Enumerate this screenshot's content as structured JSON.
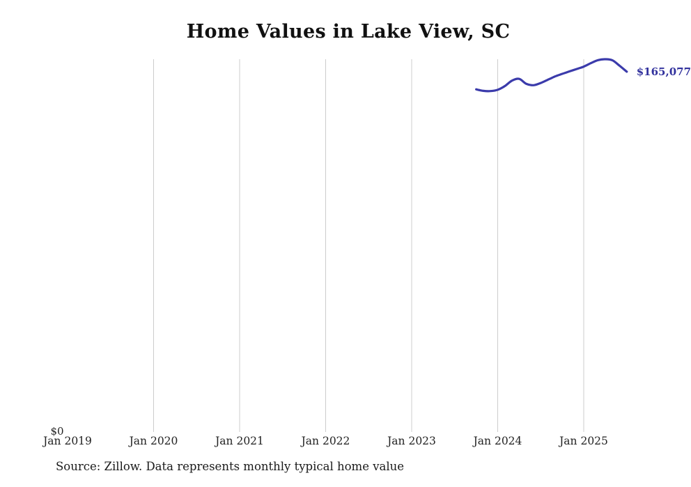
{
  "chart_data": {
    "type": "line",
    "title": "Home Values in Lake View, SC",
    "source": "Source: Zillow. Data represents monthly typical home value",
    "y_zero_label": "$0",
    "end_label": "$165,077",
    "line_color": "#3b3bab",
    "end_label_color": "#31319d",
    "gridline_color": "#cccccc",
    "xlabel": "",
    "ylabel": "",
    "ylim": [
      0,
      175000
    ],
    "x_ticks": [
      "Jan 2019",
      "Jan 2020",
      "Jan 2021",
      "Jan 2022",
      "Jan 2023",
      "Jan 2024",
      "Jan 2025"
    ],
    "legend": "none",
    "series": [
      {
        "name": "Monthly typical home value",
        "points": [
          {
            "month": "2023-10",
            "value": 157000
          },
          {
            "month": "2023-11",
            "value": 156300
          },
          {
            "month": "2023-12",
            "value": 156200
          },
          {
            "month": "2024-01",
            "value": 156800
          },
          {
            "month": "2024-02",
            "value": 158500
          },
          {
            "month": "2024-03",
            "value": 161000
          },
          {
            "month": "2024-04",
            "value": 161800
          },
          {
            "month": "2024-05",
            "value": 159500
          },
          {
            "month": "2024-06",
            "value": 158900
          },
          {
            "month": "2024-07",
            "value": 159900
          },
          {
            "month": "2024-08",
            "value": 161400
          },
          {
            "month": "2024-09",
            "value": 162900
          },
          {
            "month": "2024-10",
            "value": 164100
          },
          {
            "month": "2024-11",
            "value": 165200
          },
          {
            "month": "2024-12",
            "value": 166300
          },
          {
            "month": "2025-01",
            "value": 167400
          },
          {
            "month": "2025-02",
            "value": 169000
          },
          {
            "month": "2025-03",
            "value": 170400
          },
          {
            "month": "2025-04",
            "value": 170800
          },
          {
            "month": "2025-05",
            "value": 170300
          },
          {
            "month": "2025-06",
            "value": 167800
          },
          {
            "month": "2025-07",
            "value": 165077
          }
        ]
      }
    ]
  }
}
